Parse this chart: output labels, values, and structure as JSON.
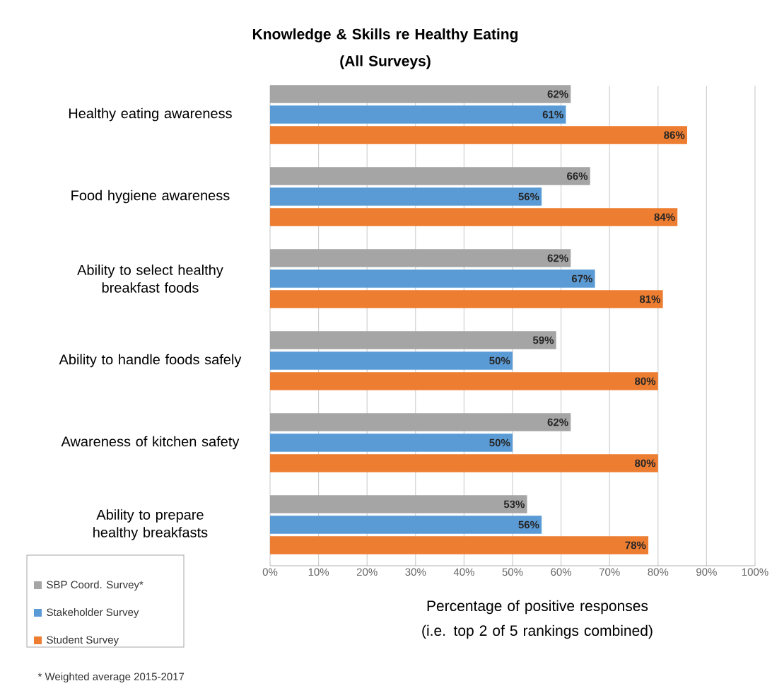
{
  "chart_data": {
    "type": "bar",
    "orientation": "horizontal",
    "title": "Knowledge & Skills re Healthy Eating\n(All Surveys)",
    "xlabel": "Percentage of positive responses\n(i.e. top 2 of 5 rankings combined)",
    "categories": [
      "Healthy eating awareness",
      "Food hygiene awareness",
      "Ability to select healthy breakfast foods",
      "Ability to handle foods safely",
      "Awareness of kitchen safety",
      "Ability to prepare healthy breakfasts"
    ],
    "series": [
      {
        "name": "SBP Coord. Survey*",
        "color": "#a5a5a5",
        "values": [
          62,
          66,
          62,
          59,
          62,
          53
        ],
        "value_labels": [
          "62%",
          "66%",
          "62%",
          "59%",
          "62%",
          "53%"
        ]
      },
      {
        "name": "Stakeholder Survey",
        "color": "#5b9bd5",
        "values": [
          61,
          56,
          67,
          50,
          50,
          56
        ],
        "value_labels": [
          "61%",
          "56%",
          "67%",
          "50%",
          "50%",
          "56%"
        ]
      },
      {
        "name": "Student Survey",
        "color": "#ed7d31",
        "values": [
          86,
          84,
          81,
          80,
          80,
          78
        ],
        "value_labels": [
          "86%",
          "84%",
          "81%",
          "80%",
          "80%",
          "78%"
        ]
      }
    ],
    "xlim": [
      0,
      100
    ],
    "xticks": [
      {
        "value": 0,
        "label": "0%"
      },
      {
        "value": 10,
        "label": "10%"
      },
      {
        "value": 20,
        "label": "20%"
      },
      {
        "value": 30,
        "label": "30%"
      },
      {
        "value": 40,
        "label": "40%"
      },
      {
        "value": 50,
        "label": "50%"
      },
      {
        "value": 60,
        "label": "60%"
      },
      {
        "value": 70,
        "label": "70%"
      },
      {
        "value": 80,
        "label": "80%"
      },
      {
        "value": 90,
        "label": "90%"
      },
      {
        "value": 100,
        "label": "100%"
      }
    ],
    "grid": "x",
    "legend": "bottom left",
    "annotations": [
      "* Weighted average 2015-2017"
    ]
  }
}
